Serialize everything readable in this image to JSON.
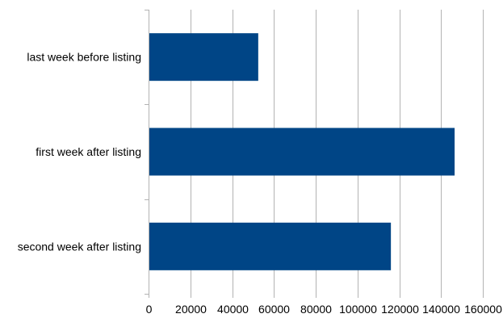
{
  "chart_data": {
    "type": "bar",
    "orientation": "horizontal",
    "categories": [
      "last week before listing",
      "first week after listing",
      "second week after listing"
    ],
    "values": [
      52500,
      146500,
      116000
    ],
    "xlim": [
      0,
      160000
    ],
    "xticks": [
      "0",
      "20000",
      "40000",
      "60000",
      "80000",
      "100000",
      "120000",
      "140000",
      "160000"
    ],
    "title": "",
    "xlabel": "",
    "ylabel": "",
    "grid": "vertical",
    "legend": "none",
    "bar_color": "#004586"
  }
}
